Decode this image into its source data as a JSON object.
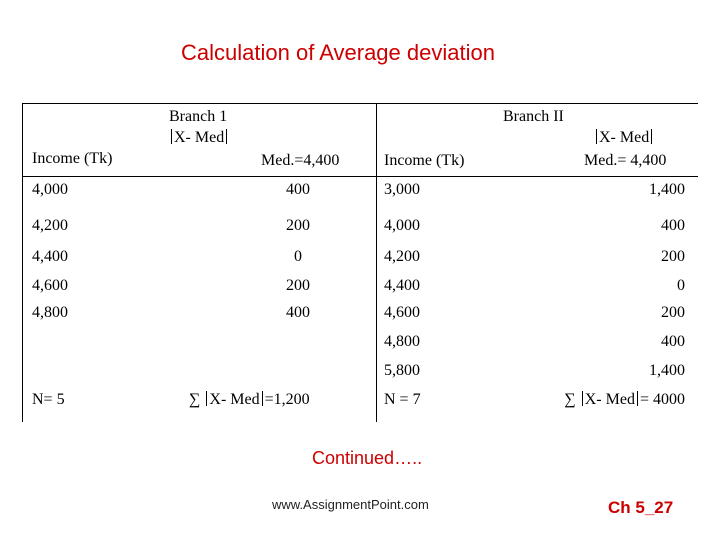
{
  "title": "Calculation of Average deviation",
  "headers": {
    "branch1": "Branch 1",
    "branch2": "Branch II",
    "abs_dev_1": "X- Med",
    "abs_dev_2": "X- Med",
    "income_1": "Income (Tk)",
    "median_1": "Med.=4,400",
    "income_2": "Income (Tk)",
    "median_2": "Med.= 4,400"
  },
  "rows": [
    {
      "income1": "4,000",
      "dev1": "400",
      "income2": "3,000",
      "dev2": "1,400"
    },
    {
      "income1": "4,200",
      "dev1": "200",
      "income2": "4,000",
      "dev2": "400"
    },
    {
      "income1": "4,400",
      "dev1": "0",
      "income2": "4,200",
      "dev2": "200"
    },
    {
      "income1": "4,600",
      "dev1": "200",
      "income2": "4,400",
      "dev2": "0"
    },
    {
      "income1": "4,800",
      "dev1": "400",
      "income2": "4,600",
      "dev2": "200"
    },
    {
      "income1": "",
      "dev1": "",
      "income2": "4,800",
      "dev2": "400"
    },
    {
      "income1": "",
      "dev1": "",
      "income2": "5,800",
      "dev2": "1,400"
    }
  ],
  "totals": {
    "n1": "N= 5",
    "sum_symbol_1": "∑",
    "sum1_label": "X- Med",
    "sum1_value": "=1,200",
    "n2": "N = 7",
    "sum_symbol_2": "∑",
    "sum2_label": "X- Med",
    "sum2_value": "= 4000"
  },
  "footer": {
    "continued": "Continued…..",
    "website": "www.AssignmentPoint.com",
    "slide_number": "Ch 5_27"
  }
}
